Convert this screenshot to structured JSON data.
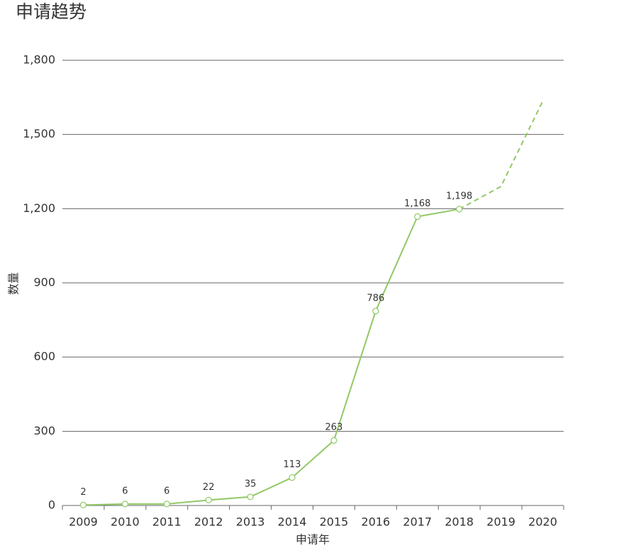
{
  "chart_data": {
    "type": "line",
    "title": "申请趋势",
    "x_label": "申请年",
    "y_label": "数量",
    "categories": [
      "2009",
      "2010",
      "2011",
      "2012",
      "2013",
      "2014",
      "2015",
      "2016",
      "2017",
      "2018",
      "2019",
      "2020"
    ],
    "values": [
      2,
      6,
      6,
      22,
      35,
      113,
      263,
      786,
      1168,
      1198,
      null,
      null
    ],
    "value_labels": [
      "2",
      "6",
      "6",
      "22",
      "35",
      "113",
      "263",
      "786",
      "1,168",
      "1,198",
      null,
      null
    ],
    "projected_values": [
      null,
      null,
      null,
      null,
      null,
      null,
      null,
      null,
      null,
      1198,
      1290,
      1635
    ],
    "color": "#91c865",
    "ylim": [
      0,
      1800
    ],
    "yticks": [
      0,
      300,
      600,
      900,
      {
        "value": 1200,
        "label": "1,200"
      },
      {
        "value": 1500,
        "label": "1,500"
      },
      {
        "value": 1800,
        "label": "1,800"
      }
    ],
    "grid": true
  }
}
